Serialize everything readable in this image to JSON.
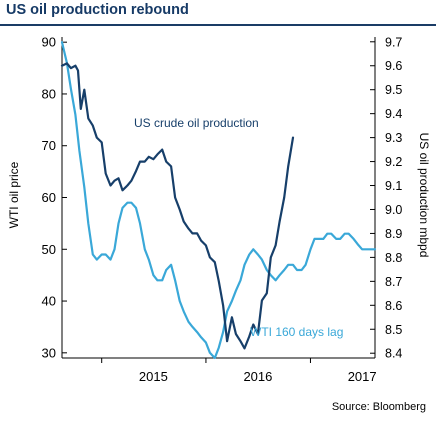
{
  "title": "US oil production rebound",
  "source": "Source: Bloomberg",
  "colors": {
    "production": "#173f6a",
    "wti": "#3aa8d8",
    "title": "#163a66",
    "axis": "#000000"
  },
  "chart_data": {
    "type": "line",
    "title": "US oil production rebound",
    "xlabel": "",
    "ylabel": "WTI oil price",
    "y2label": "US oil production mbpd",
    "x_ticks": [
      "2015",
      "2016",
      "2017"
    ],
    "xlim": [
      "2014-08-15",
      "2017-08-15"
    ],
    "ylim": [
      29,
      91
    ],
    "y2lim": [
      8.38,
      9.72
    ],
    "y_ticks": [
      "30",
      "40",
      "50",
      "60",
      "70",
      "80",
      "90"
    ],
    "y2_ticks": [
      "8.4",
      "8.5",
      "8.6",
      "8.7",
      "8.8",
      "8.9",
      "9.0",
      "9.1",
      "9.2",
      "9.3",
      "9.4",
      "9.5",
      "9.6",
      "9.7"
    ],
    "legend": "none",
    "grid": false,
    "annotations": [
      "US crude oil production",
      "WTI 160 days lag"
    ],
    "series": [
      {
        "axis": "right",
        "x": [
          "2014-08-15",
          "2014-09-01",
          "2014-09-15",
          "2014-10-01",
          "2014-10-10",
          "2014-10-20",
          "2014-11-01",
          "2014-11-15",
          "2014-12-01",
          "2014-12-15",
          "2015-01-01",
          "2015-01-15",
          "2015-02-01",
          "2015-02-15",
          "2015-03-01",
          "2015-03-15",
          "2015-04-01",
          "2015-04-15",
          "2015-05-01",
          "2015-05-15",
          "2015-06-01",
          "2015-06-15",
          "2015-07-01",
          "2015-07-15",
          "2015-08-01",
          "2015-08-15",
          "2015-09-01",
          "2015-09-15",
          "2015-10-01",
          "2015-10-15",
          "2015-11-01",
          "2015-11-15",
          "2015-12-01",
          "2015-12-15",
          "2016-01-01",
          "2016-01-15",
          "2016-02-01",
          "2016-02-15",
          "2016-03-01",
          "2016-03-15",
          "2016-04-01",
          "2016-04-15",
          "2016-05-01",
          "2016-05-15",
          "2016-06-01",
          "2016-06-15",
          "2016-07-01",
          "2016-07-15",
          "2016-08-01",
          "2016-08-15",
          "2016-09-01",
          "2016-09-15",
          "2016-10-01",
          "2016-10-15",
          "2016-11-01"
        ],
        "values": [
          9.6,
          9.61,
          9.59,
          9.6,
          9.58,
          9.42,
          9.5,
          9.38,
          9.35,
          9.3,
          9.28,
          9.15,
          9.1,
          9.12,
          9.13,
          9.08,
          9.1,
          9.12,
          9.16,
          9.2,
          9.2,
          9.22,
          9.21,
          9.23,
          9.25,
          9.2,
          9.18,
          9.05,
          9.0,
          8.95,
          8.92,
          8.9,
          8.9,
          8.87,
          8.85,
          8.8,
          8.78,
          8.7,
          8.6,
          8.45,
          8.55,
          8.48,
          8.45,
          8.42,
          8.47,
          8.52,
          8.48,
          8.62,
          8.65,
          8.8,
          8.85,
          8.95,
          9.05,
          9.18,
          9.3
        ]
      },
      {
        "axis": "left",
        "x": [
          "2014-08-15",
          "2014-09-01",
          "2014-09-15",
          "2014-10-01",
          "2014-10-15",
          "2014-11-01",
          "2014-11-15",
          "2014-12-01",
          "2014-12-15",
          "2015-01-01",
          "2015-01-15",
          "2015-02-01",
          "2015-02-15",
          "2015-03-01",
          "2015-03-15",
          "2015-04-01",
          "2015-04-15",
          "2015-05-01",
          "2015-05-15",
          "2015-06-01",
          "2015-06-15",
          "2015-07-01",
          "2015-07-15",
          "2015-08-01",
          "2015-08-15",
          "2015-09-01",
          "2015-09-15",
          "2015-10-01",
          "2015-10-15",
          "2015-11-01",
          "2015-11-15",
          "2015-12-01",
          "2015-12-15",
          "2016-01-01",
          "2016-01-15",
          "2016-02-01",
          "2016-02-15",
          "2016-03-01",
          "2016-03-15",
          "2016-04-01",
          "2016-04-15",
          "2016-05-01",
          "2016-05-15",
          "2016-06-01",
          "2016-06-15",
          "2016-07-01",
          "2016-07-15",
          "2016-08-01",
          "2016-08-15",
          "2016-09-01",
          "2016-09-15",
          "2016-10-01",
          "2016-10-15",
          "2016-11-01",
          "2016-11-15",
          "2016-12-01",
          "2016-12-15",
          "2017-01-01",
          "2017-01-15",
          "2017-02-01",
          "2017-02-15",
          "2017-03-01",
          "2017-03-15",
          "2017-04-01",
          "2017-04-15",
          "2017-05-01",
          "2017-05-15",
          "2017-06-01",
          "2017-06-15",
          "2017-07-01",
          "2017-07-15",
          "2017-08-01",
          "2017-08-15"
        ],
        "values": [
          90,
          86,
          81,
          76,
          69,
          62,
          55,
          49,
          48,
          49,
          49,
          48,
          50,
          55,
          58,
          59,
          59,
          58,
          55,
          50,
          48,
          45,
          44,
          44,
          46,
          47,
          44,
          40,
          38,
          36,
          35,
          34,
          33,
          32,
          30,
          29,
          31,
          34,
          38,
          40,
          42,
          44,
          47,
          49,
          50,
          49,
          48,
          46,
          45,
          44,
          45,
          46,
          47,
          47,
          46,
          46,
          47,
          50,
          52,
          52,
          52,
          53,
          53,
          52,
          52,
          53,
          53,
          52,
          51,
          50,
          50,
          50,
          50
        ]
      }
    ]
  }
}
